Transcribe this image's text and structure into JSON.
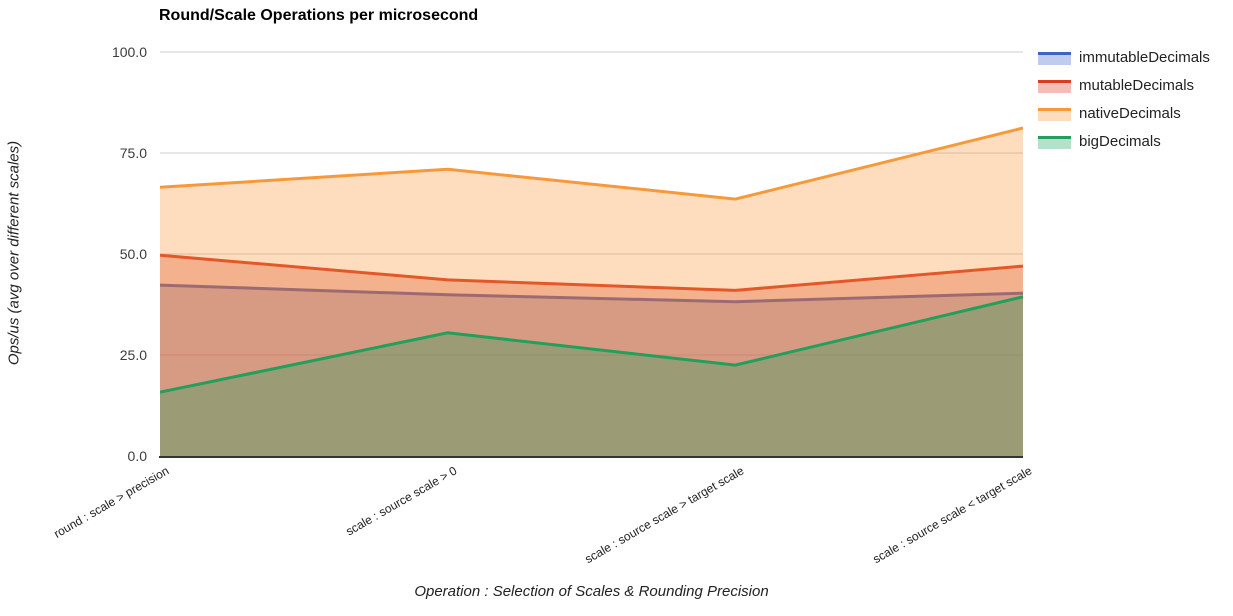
{
  "chart_data": {
    "type": "area",
    "title": "Round/Scale Operations per microsecond",
    "xlabel": "Operation : Selection of Scales & Rounding Precision",
    "ylabel": "Ops/us (avg over different scales)",
    "ylim": [
      0,
      100
    ],
    "grid": true,
    "legend_position": "top-right",
    "fill_opacity": 0.33,
    "line_width": 3,
    "grid_color": "#cccccc",
    "baseline_color": "#333333",
    "y_ticks": [
      {
        "label": "100.0",
        "value": 100
      },
      {
        "label": "75.0",
        "value": 75
      },
      {
        "label": "50.0",
        "value": 50
      },
      {
        "label": "25.0",
        "value": 25
      },
      {
        "label": "0.0",
        "value": 0
      }
    ],
    "categories": [
      "round : scale > precision",
      "scale : source scale > 0",
      "scale : source scale > target scale",
      "scale : source scale < target scale"
    ],
    "series": [
      {
        "name": "immutableDecimals",
        "color": "#3C64C3",
        "values": [
          42.3,
          39.9,
          38.2,
          40.3
        ]
      },
      {
        "name": "mutableDecimals",
        "color": "#D93A22",
        "values": [
          49.7,
          43.6,
          41.0,
          47.0
        ]
      },
      {
        "name": "nativeDecimals",
        "color": "#F89939",
        "values": [
          66.5,
          71.0,
          63.6,
          81.2
        ]
      },
      {
        "name": "bigDecimals",
        "color": "#22A05B",
        "values": [
          15.8,
          30.5,
          22.5,
          39.4
        ]
      }
    ]
  }
}
